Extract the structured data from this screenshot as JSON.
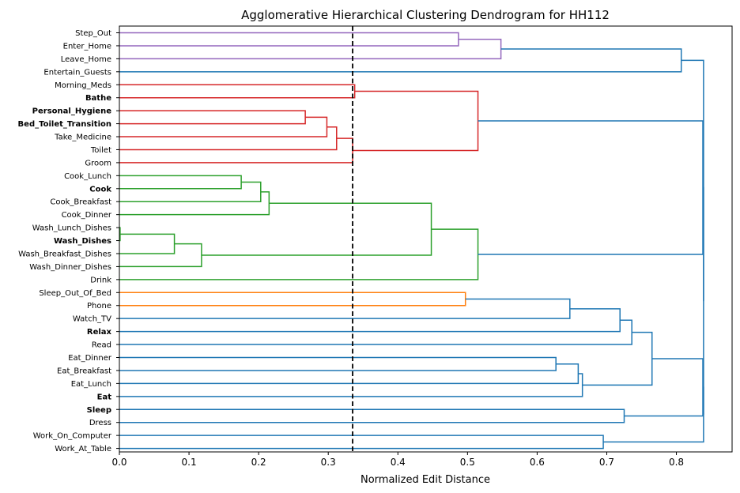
{
  "chart_data": {
    "type": "dendrogram",
    "orientation": "horizontal",
    "title": "Agglomerative Hierarchical Clustering Dendrogram for HH112",
    "xlabel": "Normalized Edit Distance",
    "ylabel": "",
    "xlim": [
      0,
      0.88
    ],
    "xticks": [
      0.0,
      0.1,
      0.2,
      0.3,
      0.4,
      0.5,
      0.6,
      0.7,
      0.8
    ],
    "xtick_labels": [
      "0.0",
      "0.1",
      "0.2",
      "0.3",
      "0.4",
      "0.5",
      "0.6",
      "0.7",
      "0.8"
    ],
    "threshold": 0.335,
    "colors": {
      "purple": "#9467bd",
      "red": "#d62728",
      "green": "#2ca02c",
      "orange": "#ff7f0e",
      "blue": "#1f77b4",
      "threshold": "#000000"
    },
    "leaves": [
      {
        "label": "Step_Out",
        "bold": false
      },
      {
        "label": "Enter_Home",
        "bold": false
      },
      {
        "label": "Leave_Home",
        "bold": false
      },
      {
        "label": "Entertain_Guests",
        "bold": false
      },
      {
        "label": "Morning_Meds",
        "bold": false
      },
      {
        "label": "Bathe",
        "bold": true
      },
      {
        "label": "Personal_Hygiene",
        "bold": true
      },
      {
        "label": "Bed_Toilet_Transition",
        "bold": true
      },
      {
        "label": "Take_Medicine",
        "bold": false
      },
      {
        "label": "Toilet",
        "bold": false
      },
      {
        "label": "Groom",
        "bold": false
      },
      {
        "label": "Cook_Lunch",
        "bold": false
      },
      {
        "label": "Cook",
        "bold": true
      },
      {
        "label": "Cook_Breakfast",
        "bold": false
      },
      {
        "label": "Cook_Dinner",
        "bold": false
      },
      {
        "label": "Wash_Lunch_Dishes",
        "bold": false
      },
      {
        "label": "Wash_Dishes",
        "bold": true
      },
      {
        "label": "Wash_Breakfast_Dishes",
        "bold": false
      },
      {
        "label": "Wash_Dinner_Dishes",
        "bold": false
      },
      {
        "label": "Drink",
        "bold": false
      },
      {
        "label": "Sleep_Out_Of_Bed",
        "bold": false
      },
      {
        "label": "Phone",
        "bold": false
      },
      {
        "label": "Watch_TV",
        "bold": false
      },
      {
        "label": "Relax",
        "bold": true
      },
      {
        "label": "Read",
        "bold": false
      },
      {
        "label": "Eat_Dinner",
        "bold": false
      },
      {
        "label": "Eat_Breakfast",
        "bold": false
      },
      {
        "label": "Eat_Lunch",
        "bold": false
      },
      {
        "label": "Eat",
        "bold": true
      },
      {
        "label": "Sleep",
        "bold": true
      },
      {
        "label": "Dress",
        "bold": false
      },
      {
        "label": "Work_On_Computer",
        "bold": false
      },
      {
        "label": "Work_At_Table",
        "bold": false
      }
    ],
    "merges": [
      {
        "id": "m1",
        "a": 0,
        "b": 1,
        "h": 0.487,
        "color": "purple"
      },
      {
        "id": "m2",
        "a": "m1",
        "b": 2,
        "h": 0.548,
        "color": "purple"
      },
      {
        "id": "m3",
        "a": "m2",
        "b": 3,
        "h": 0.807,
        "color": "blue"
      },
      {
        "id": "m4",
        "a": 6,
        "b": 7,
        "h": 0.267,
        "color": "red"
      },
      {
        "id": "m5",
        "a": "m4",
        "b": 8,
        "h": 0.298,
        "color": "red"
      },
      {
        "id": "m6",
        "a": "m5",
        "b": 9,
        "h": 0.312,
        "color": "red"
      },
      {
        "id": "m7",
        "a": "m6",
        "b": 10,
        "h": 0.335,
        "color": "red"
      },
      {
        "id": "m8",
        "a": 4,
        "b": 5,
        "h": 0.338,
        "color": "red"
      },
      {
        "id": "m9",
        "a": "m8",
        "b": "m7",
        "h": 0.515,
        "color": "red"
      },
      {
        "id": "m10",
        "a": 11,
        "b": 12,
        "h": 0.175,
        "color": "green"
      },
      {
        "id": "m11",
        "a": "m10",
        "b": 13,
        "h": 0.203,
        "color": "green"
      },
      {
        "id": "m12",
        "a": "m11",
        "b": 14,
        "h": 0.215,
        "color": "green"
      },
      {
        "id": "m13",
        "a": 15,
        "b": 16,
        "h": 0.001,
        "color": "green"
      },
      {
        "id": "m14",
        "a": "m13",
        "b": 17,
        "h": 0.079,
        "color": "green"
      },
      {
        "id": "m15",
        "a": "m14",
        "b": 18,
        "h": 0.118,
        "color": "green"
      },
      {
        "id": "m16",
        "a": "m12",
        "b": "m15",
        "h": 0.448,
        "color": "green"
      },
      {
        "id": "m17",
        "a": "m16",
        "b": 19,
        "h": 0.515,
        "color": "green"
      },
      {
        "id": "m18",
        "a": 20,
        "b": 21,
        "h": 0.497,
        "color": "orange"
      },
      {
        "id": "m19",
        "a": "m18",
        "b": 22,
        "h": 0.647,
        "color": "blue"
      },
      {
        "id": "m20",
        "a": "m19",
        "b": 23,
        "h": 0.719,
        "color": "blue"
      },
      {
        "id": "m21",
        "a": "m20",
        "b": 24,
        "h": 0.736,
        "color": "blue"
      },
      {
        "id": "m22",
        "a": 25,
        "b": 26,
        "h": 0.627,
        "color": "blue"
      },
      {
        "id": "m23",
        "a": "m22",
        "b": 27,
        "h": 0.659,
        "color": "blue"
      },
      {
        "id": "m24",
        "a": "m23",
        "b": 28,
        "h": 0.665,
        "color": "blue"
      },
      {
        "id": "m25",
        "a": "m21",
        "b": "m24",
        "h": 0.765,
        "color": "blue"
      },
      {
        "id": "m26",
        "a": 29,
        "b": 30,
        "h": 0.725,
        "color": "blue"
      },
      {
        "id": "m27",
        "a": 31,
        "b": 32,
        "h": 0.695,
        "color": "blue"
      },
      {
        "id": "m28",
        "a": "m9",
        "b": "m17",
        "h": 0.838,
        "color": "blue"
      },
      {
        "id": "m29",
        "a": "m25",
        "b": "m26",
        "h": 0.838,
        "color": "blue"
      },
      {
        "id": "m30",
        "a": "m29",
        "b": "m27",
        "h": 0.839,
        "color": "blue"
      },
      {
        "id": "m31",
        "a": "m28",
        "b": "m30",
        "h": 0.839,
        "color": "blue"
      },
      {
        "id": "m32",
        "a": "m3",
        "b": "m31",
        "h": 0.839,
        "color": "blue"
      }
    ]
  }
}
